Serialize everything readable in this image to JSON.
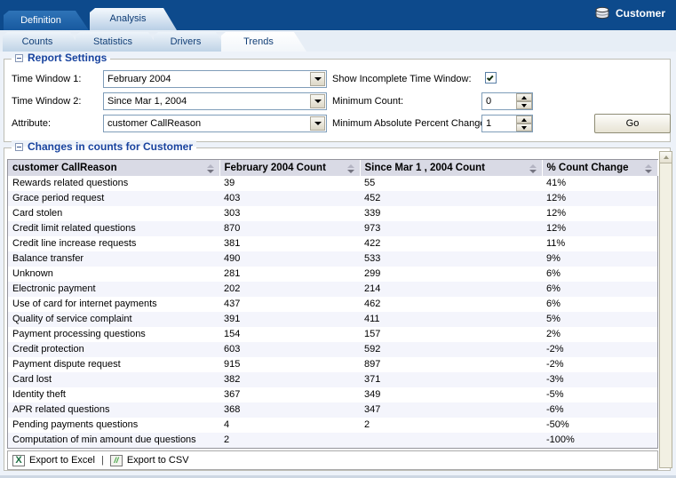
{
  "app": {
    "entity_label": "Customer"
  },
  "main_tabs": [
    {
      "label": "Definition",
      "selected": false
    },
    {
      "label": "Analysis",
      "selected": true
    }
  ],
  "sub_tabs": [
    {
      "label": "Counts",
      "selected": false
    },
    {
      "label": "Statistics",
      "selected": false
    },
    {
      "label": "Drivers",
      "selected": false
    },
    {
      "label": "Trends",
      "selected": true
    }
  ],
  "report_settings": {
    "title": "Report Settings",
    "time_window_1": {
      "label": "Time Window 1:",
      "value": "February 2004"
    },
    "time_window_2": {
      "label": "Time Window 2:",
      "value": "Since Mar 1, 2004"
    },
    "attribute": {
      "label": "Attribute:",
      "value": "customer CallReason"
    },
    "show_incomplete": {
      "label": "Show Incomplete Time Window:",
      "checked": true
    },
    "minimum_count": {
      "label": "Minimum Count:",
      "value": "0"
    },
    "min_abs_percent_change": {
      "label": "Minimum Absolute Percent Change",
      "value": "1"
    },
    "go_label": "Go"
  },
  "results": {
    "title": "Changes in counts for Customer",
    "columns": [
      "customer CallReason",
      "February 2004 Count",
      "Since Mar 1 , 2004 Count",
      "% Count Change"
    ],
    "rows": [
      [
        "Rewards related questions",
        "39",
        "55",
        "41%"
      ],
      [
        "Grace period request",
        "403",
        "452",
        "12%"
      ],
      [
        "Card stolen",
        "303",
        "339",
        "12%"
      ],
      [
        "Credit limit related questions",
        "870",
        "973",
        "12%"
      ],
      [
        "Credit line increase requests",
        "381",
        "422",
        "11%"
      ],
      [
        "Balance transfer",
        "490",
        "533",
        "9%"
      ],
      [
        "Unknown",
        "281",
        "299",
        "6%"
      ],
      [
        "Electronic payment",
        "202",
        "214",
        "6%"
      ],
      [
        "Use of card for internet payments",
        "437",
        "462",
        "6%"
      ],
      [
        "Quality of service complaint",
        "391",
        "411",
        "5%"
      ],
      [
        "Payment processing questions",
        "154",
        "157",
        "2%"
      ],
      [
        "Credit protection",
        "603",
        "592",
        "-2%"
      ],
      [
        "Payment dispute request",
        "915",
        "897",
        "-2%"
      ],
      [
        "Card lost",
        "382",
        "371",
        "-3%"
      ],
      [
        "Identity theft",
        "367",
        "349",
        "-5%"
      ],
      [
        "APR related questions",
        "368",
        "347",
        "-6%"
      ],
      [
        "Pending payments questions",
        "4",
        "2",
        "-50%"
      ],
      [
        "Computation of min amount due questions",
        "2",
        "",
        "-100%"
      ]
    ]
  },
  "footer": {
    "export_excel": "Export to Excel",
    "separator": "|",
    "export_csv": "Export to CSV"
  },
  "icons": {
    "excel_glyph": "X",
    "csv_glyph": "//",
    "database": "database-cylinder",
    "collapse": "minus-box",
    "sort": "up-down-arrows"
  },
  "colors": {
    "navy_band": "#0d4a8c",
    "selected_main_tab_text": "#0c3a74",
    "legend_text": "#17429e",
    "table_header_bg": "#d9dae5",
    "row_alt_bg": "#f4f5fc",
    "scrollbar_track": "#f2f0e3",
    "excel_green": "#1a6e41"
  }
}
